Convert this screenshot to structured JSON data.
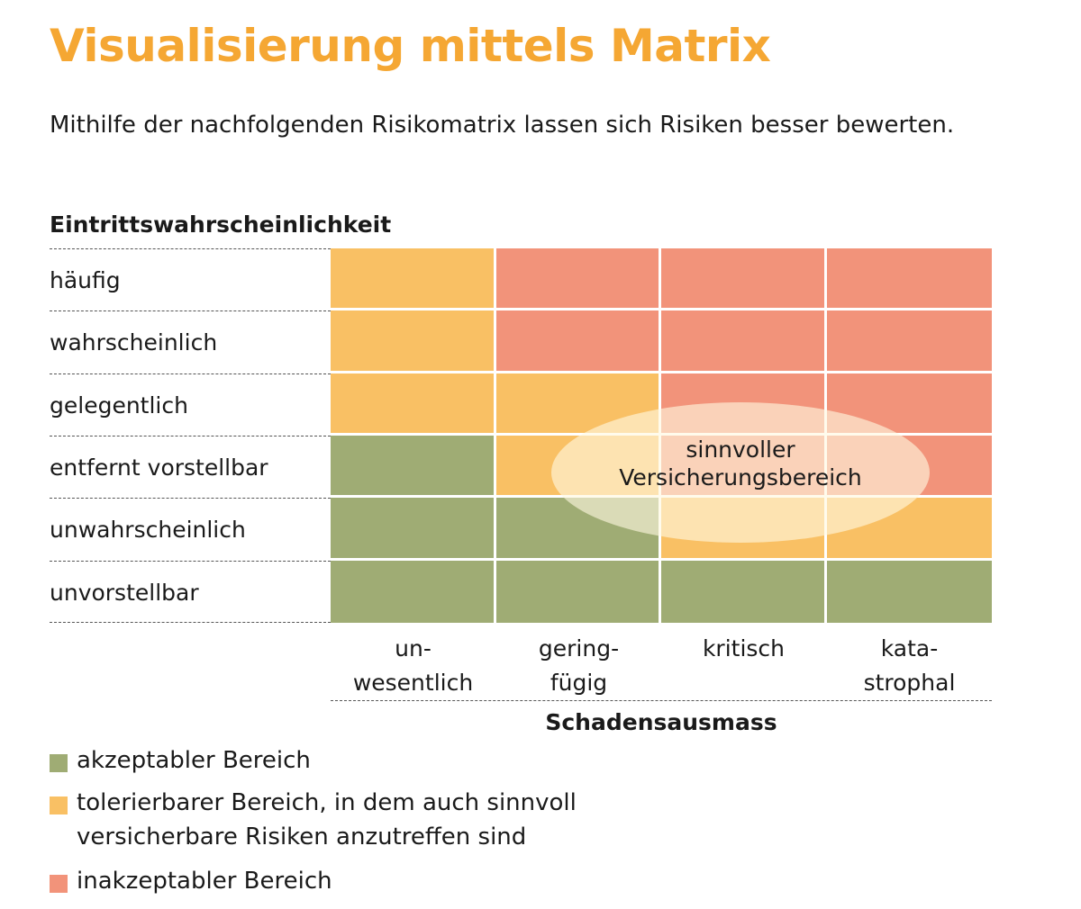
{
  "title": "Visualisierung mittels Matrix",
  "subtitle": "Mithilfe der nachfolgenden Risikomatrix lassen sich Risiken besser bewerten.",
  "colors": {
    "title": "#f5a733",
    "acceptable": "#9fac74",
    "tolerable": "#f9c064",
    "unacceptable": "#f2937a"
  },
  "chart_data": {
    "type": "heatmap",
    "ylabel": "Eintrittswahrscheinlichkeit",
    "xlabel": "Schadensausmass",
    "rows": [
      "häufig",
      "wahrscheinlich",
      "gelegentlich",
      "entfernt vorstellbar",
      "unwahrscheinlich",
      "unvorstellbar"
    ],
    "columns": [
      [
        "un-",
        "wesentlich"
      ],
      [
        "gering-",
        "fügig"
      ],
      [
        "kritisch"
      ],
      [
        "kata-",
        "strophal"
      ]
    ],
    "cells": [
      [
        "tolerable",
        "unacceptable",
        "unacceptable",
        "unacceptable"
      ],
      [
        "tolerable",
        "unacceptable",
        "unacceptable",
        "unacceptable"
      ],
      [
        "tolerable",
        "tolerable",
        "unacceptable",
        "unacceptable"
      ],
      [
        "acceptable",
        "tolerable",
        "unacceptable",
        "unacceptable"
      ],
      [
        "acceptable",
        "acceptable",
        "tolerable",
        "tolerable"
      ],
      [
        "acceptable",
        "acceptable",
        "acceptable",
        "acceptable"
      ]
    ],
    "annotation": [
      "sinnvoller",
      "Versicherungsbereich"
    ],
    "legend": [
      {
        "category": "acceptable",
        "lines": [
          "akzeptabler Bereich"
        ]
      },
      {
        "category": "tolerable",
        "lines": [
          "tolerierbarer Bereich, in dem auch sinnvoll",
          "versicherbare Risiken anzutreffen sind"
        ]
      },
      {
        "category": "unacceptable",
        "lines": [
          "inakzeptabler Bereich"
        ]
      }
    ]
  }
}
